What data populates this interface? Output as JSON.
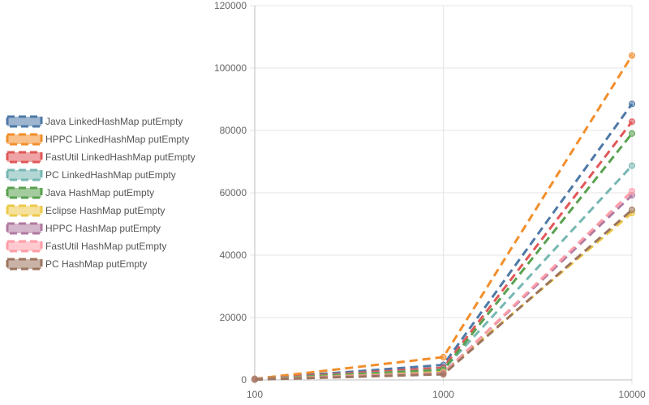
{
  "chart_data": {
    "type": "line",
    "x_scale": "log",
    "x": [
      100,
      1000,
      10000
    ],
    "x_tick_labels": [
      "100",
      "1000",
      "10000"
    ],
    "ylim": [
      0,
      120000
    ],
    "y_ticks": [
      0,
      20000,
      40000,
      60000,
      80000,
      100000,
      120000
    ],
    "y_tick_labels": [
      "0",
      "20000",
      "40000",
      "60000",
      "80000",
      "100000",
      "120000"
    ],
    "grid": true,
    "legend_position": "left",
    "line_style": "dashed",
    "series": [
      {
        "name": "Java LinkedHashMap  putEmpty",
        "color": "#4e79a7",
        "values": [
          350,
          4800,
          88500
        ]
      },
      {
        "name": "HPPC LinkedHashMap  putEmpty",
        "color": "#f28e2b",
        "values": [
          350,
          7300,
          104000
        ]
      },
      {
        "name": "FastUtil LinkedHashMap  putEmpty",
        "color": "#e15759",
        "values": [
          300,
          3900,
          82800
        ]
      },
      {
        "name": "PC LinkedHashMap  putEmpty",
        "color": "#76b7b2",
        "values": [
          250,
          3300,
          68700
        ]
      },
      {
        "name": "Java HashMap  putEmpty",
        "color": "#59a14f",
        "values": [
          200,
          3200,
          79000
        ]
      },
      {
        "name": "Eclipse HashMap  putEmpty",
        "color": "#edc948",
        "values": [
          150,
          2500,
          53500
        ]
      },
      {
        "name": "HPPC HashMap  putEmpty",
        "color": "#b07aa1",
        "values": [
          150,
          2200,
          59200
        ]
      },
      {
        "name": "FastUtil HashMap  putEmpty",
        "color": "#ff9da7",
        "values": [
          150,
          2000,
          60500
        ]
      },
      {
        "name": "PC HashMap  putEmpty",
        "color": "#9c755f",
        "values": [
          100,
          1800,
          54500
        ]
      }
    ]
  }
}
